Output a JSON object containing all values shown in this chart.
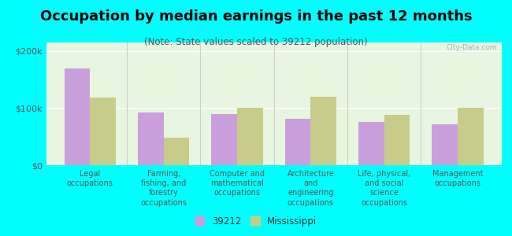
{
  "title": "Occupation by median earnings in the past 12 months",
  "subtitle": "(Note: State values scaled to 39212 population)",
  "categories": [
    "Legal\noccupations",
    "Farming,\nfishing, and\nforestry\noccupations",
    "Computer and\nmathematical\noccupations",
    "Architecture\nand\nengineering\noccupations",
    "Life, physical,\nand social\nscience\noccupations",
    "Management\noccupations"
  ],
  "values_39212": [
    170000,
    93000,
    90000,
    82000,
    76000,
    72000
  ],
  "values_mississippi": [
    118000,
    48000,
    100000,
    120000,
    88000,
    100000
  ],
  "color_39212": "#c9a0dc",
  "color_mississippi": "#c8cc8a",
  "background_color": "#00ffff",
  "plot_bg_color": "#e8f5e0",
  "ylim": [
    0,
    215000
  ],
  "yticks": [
    0,
    100000,
    200000
  ],
  "ytick_labels": [
    "$0",
    "$100k",
    "$200k"
  ],
  "bar_width": 0.35,
  "legend_label_39212": "39212",
  "legend_label_mississippi": "Mississippi",
  "title_fontsize": 13,
  "subtitle_fontsize": 8.5,
  "tick_fontsize": 8,
  "label_fontsize": 7,
  "watermark": "City-Data.com"
}
